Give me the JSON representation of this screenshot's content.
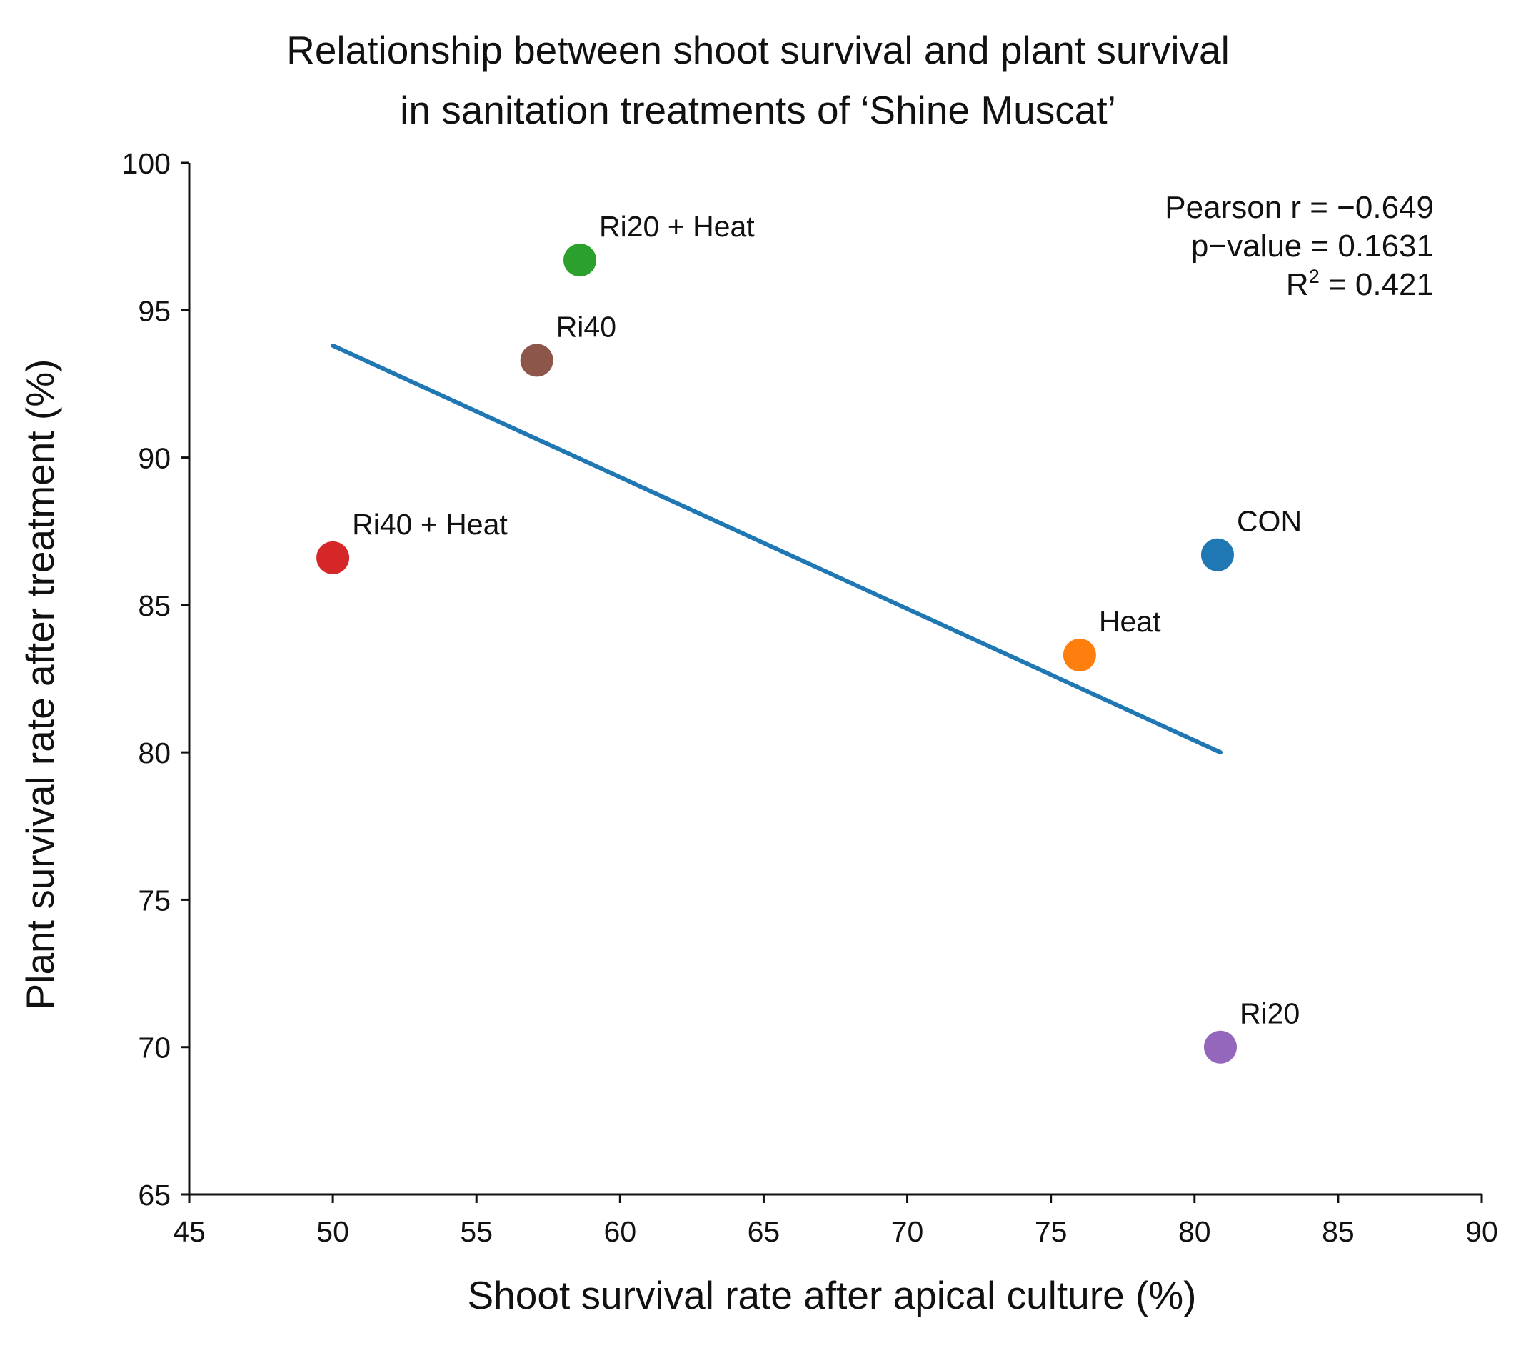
{
  "chart_data": {
    "type": "scatter",
    "title": [
      "Relationship between shoot survival and plant survival",
      "in sanitation treatments of ‘Shine Muscat’"
    ],
    "xlabel": "Shoot survival rate after apical culture (%)",
    "ylabel": "Plant survival rate after treatment (%)",
    "xlim": [
      45,
      90
    ],
    "ylim": [
      65,
      100
    ],
    "xticks": [
      45,
      50,
      55,
      60,
      65,
      70,
      75,
      80,
      85,
      90
    ],
    "yticks": [
      65,
      70,
      75,
      80,
      85,
      90,
      95,
      100
    ],
    "grid": false,
    "legend": "none",
    "points": [
      {
        "label": "CON",
        "x": 80.8,
        "y": 86.7,
        "color": "#1f77b4"
      },
      {
        "label": "Heat",
        "x": 76.0,
        "y": 83.3,
        "color": "#ff7f0e"
      },
      {
        "label": "Ri20 + Heat",
        "x": 58.6,
        "y": 96.7,
        "color": "#2ca02c"
      },
      {
        "label": "Ri40 + Heat",
        "x": 50.0,
        "y": 86.6,
        "color": "#d62728"
      },
      {
        "label": "Ri20",
        "x": 80.9,
        "y": 70.0,
        "color": "#9467bd"
      },
      {
        "label": "Ri40",
        "x": 57.1,
        "y": 93.3,
        "color": "#8c564b"
      }
    ],
    "trendline": {
      "color": "#1f77b4",
      "x": [
        50.0,
        80.9
      ],
      "y": [
        93.8,
        80.0
      ]
    },
    "stats": [
      {
        "text": "Pearson r = −0.649"
      },
      {
        "text": "p−value = 0.1631"
      },
      {
        "prefix": "R",
        "sup": "2",
        "suffix": " = 0.421"
      }
    ]
  }
}
